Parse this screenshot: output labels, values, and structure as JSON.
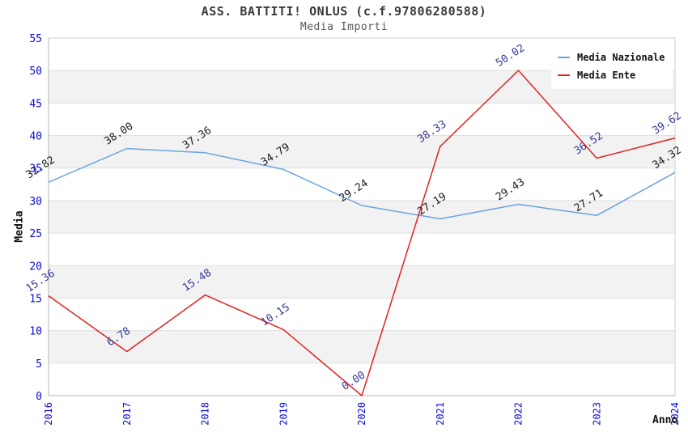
{
  "header": {
    "title": "ASS. BATTITI! ONLUS (c.f.97806280588)",
    "subtitle": "Media Importi"
  },
  "chart_data": {
    "type": "line",
    "x": [
      "2016",
      "2017",
      "2018",
      "2019",
      "2020",
      "2021",
      "2022",
      "2023",
      "2024"
    ],
    "series": [
      {
        "name": "Media Nazionale",
        "color": "#6aa4e0",
        "label_color": "#1c1c1c",
        "values": [
          32.82,
          38.0,
          37.36,
          34.79,
          29.24,
          27.19,
          29.43,
          27.71,
          34.32
        ]
      },
      {
        "name": "Media Ente",
        "color": "#e02222",
        "label_color": "#36399b",
        "values": [
          15.36,
          6.78,
          15.48,
          10.15,
          0.0,
          38.33,
          50.02,
          36.52,
          39.62
        ]
      }
    ],
    "xlabel": "Anno",
    "ylabel": "Media",
    "ylim": [
      0,
      55
    ],
    "yticks": [
      0,
      5,
      10,
      15,
      20,
      25,
      30,
      35,
      40,
      45,
      50,
      55
    ],
    "point_label_format": "two-decimals",
    "legend_position": "top-right",
    "grid": "alternating-bands",
    "colors": {
      "tick_label": "#0b0bd6",
      "band": "#f2f2f2",
      "gridline": "#e0e0e0",
      "axis": "#b5b5b5",
      "frame": "#d2d2d2",
      "title": "#3a3a3a",
      "subtitle": "#585858"
    }
  }
}
